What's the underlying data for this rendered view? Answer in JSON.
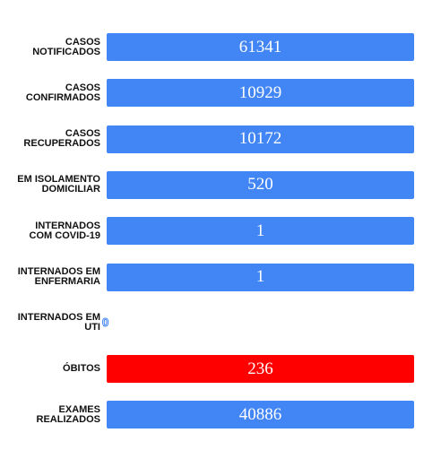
{
  "rows": [
    {
      "label": [
        "CASOS",
        "NOTIFICADOS"
      ],
      "value": "61341",
      "color": "#4285f4",
      "box": true
    },
    {
      "label": [
        "CASOS",
        "CONFIRMADOS"
      ],
      "value": "10929",
      "color": "#4285f4",
      "box": true
    },
    {
      "label": [
        "CASOS",
        "RECUPERADOS"
      ],
      "value": "10172",
      "color": "#4285f4",
      "box": true
    },
    {
      "label": [
        "EM ISOLAMENTO",
        "DOMICILIAR"
      ],
      "value": "520",
      "color": "#4285f4",
      "box": true
    },
    {
      "label": [
        "INTERNADOS",
        "COM COVID-19"
      ],
      "value": "1",
      "color": "#4285f4",
      "box": true
    },
    {
      "label": [
        "INTERNADOS EM",
        "ENFERMARIA"
      ],
      "value": "1",
      "color": "#4285f4",
      "box": true
    },
    {
      "label": [
        "INTERNADOS EM",
        "UTI"
      ],
      "value": "0",
      "color": "#4285f4",
      "box": false
    },
    {
      "label": [
        "ÓBITOS"
      ],
      "value": "236",
      "color": "#ff0000",
      "box": true
    },
    {
      "label": [
        "EXAMES",
        "REALIZADOS"
      ],
      "value": "40886",
      "color": "#4285f4",
      "box": true
    }
  ]
}
